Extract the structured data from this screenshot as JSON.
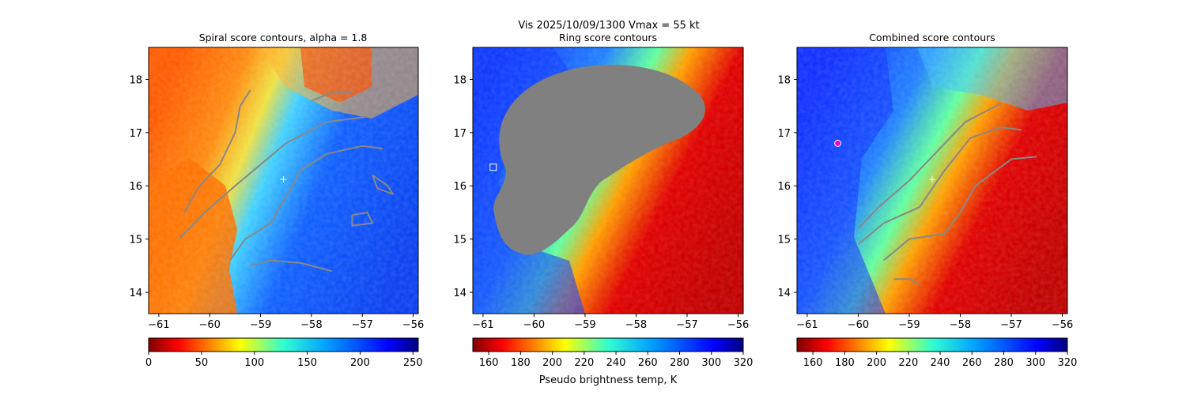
{
  "suptitle": "Vis  2025/10/09/1300    Vmax = 55 kt",
  "chart_data": [
    {
      "type": "heatmap",
      "title": "Spiral score contours, alpha =  1.8",
      "xlabel": "",
      "ylabel": "",
      "xlim": [
        -61.2,
        -55.9
      ],
      "ylim": [
        13.6,
        18.6
      ],
      "xticks": [
        -61,
        -60,
        -59,
        -58,
        -57,
        -56
      ],
      "yticks": [
        14,
        15,
        16,
        17,
        18
      ],
      "colormap": "jet_r",
      "colorbar": {
        "label": "",
        "range": [
          0,
          255
        ],
        "ticks": [
          0,
          50,
          100,
          150,
          200,
          250
        ]
      },
      "center_marker": {
        "lon": -58.55,
        "lat": 16.12,
        "color": "#ffffff"
      },
      "contour_color": "#888888",
      "contours": [
        [
          [
            -59.6,
            14.6
          ],
          [
            -59.3,
            15.0
          ],
          [
            -58.8,
            15.3
          ],
          [
            -58.5,
            15.8
          ],
          [
            -58.2,
            16.3
          ],
          [
            -57.7,
            16.6
          ],
          [
            -57.0,
            16.75
          ],
          [
            -56.6,
            16.7
          ]
        ],
        [
          [
            -60.6,
            15.0
          ],
          [
            -60.1,
            15.5
          ],
          [
            -59.5,
            16.0
          ],
          [
            -59.0,
            16.4
          ],
          [
            -58.5,
            16.8
          ],
          [
            -57.7,
            17.2
          ],
          [
            -56.9,
            17.3
          ]
        ],
        [
          [
            -60.5,
            15.5
          ],
          [
            -60.2,
            16.0
          ],
          [
            -59.8,
            16.4
          ],
          [
            -59.5,
            17.0
          ],
          [
            -59.4,
            17.5
          ],
          [
            -59.2,
            17.8
          ]
        ],
        [
          [
            -59.2,
            14.5
          ],
          [
            -58.8,
            14.6
          ],
          [
            -58.2,
            14.55
          ],
          [
            -57.6,
            14.4
          ]
        ],
        [
          [
            -58.0,
            17.6
          ],
          [
            -57.6,
            17.75
          ],
          [
            -57.2,
            17.75
          ]
        ],
        [
          [
            -56.8,
            16.2
          ],
          [
            -56.5,
            16.0
          ],
          [
            -56.4,
            15.85
          ],
          [
            -56.7,
            15.95
          ],
          [
            -56.8,
            16.2
          ]
        ],
        [
          [
            -57.2,
            15.45
          ],
          [
            -56.9,
            15.5
          ],
          [
            -56.8,
            15.3
          ],
          [
            -57.2,
            15.25
          ],
          [
            -57.2,
            15.45
          ]
        ]
      ]
    },
    {
      "type": "heatmap",
      "title": "Ring score contours",
      "xlabel": "Pseudo brightness temp, K",
      "ylabel": "",
      "xlim": [
        -61.2,
        -55.9
      ],
      "ylim": [
        13.6,
        18.6
      ],
      "xticks": [
        -61,
        -60,
        -59,
        -58,
        -57,
        -56
      ],
      "yticks": [
        14,
        15,
        16,
        17,
        18
      ],
      "colormap": "jet_r",
      "colorbar": {
        "label": "Pseudo brightness temp, K",
        "range": [
          150,
          320
        ],
        "ticks": [
          160,
          180,
          200,
          220,
          240,
          260,
          280,
          300,
          320
        ]
      },
      "masked_color": "#808080",
      "box_marker": {
        "lon": -60.8,
        "lat": 16.35,
        "color": "#ffffff"
      }
    },
    {
      "type": "heatmap",
      "title": "Combined score contours",
      "xlabel": "",
      "ylabel": "",
      "xlim": [
        -61.2,
        -55.9
      ],
      "ylim": [
        13.6,
        18.6
      ],
      "xticks": [
        -61,
        -60,
        -59,
        -58,
        -57,
        -56
      ],
      "yticks": [
        14,
        15,
        16,
        17,
        18
      ],
      "colormap": "jet_r",
      "colorbar": {
        "label": "",
        "range": [
          150,
          320
        ],
        "ticks": [
          160,
          180,
          200,
          220,
          240,
          260,
          280,
          300,
          320
        ]
      },
      "center_marker": {
        "lon": -58.55,
        "lat": 16.12,
        "color": "#ffffff"
      },
      "circle_marker": {
        "lon": -60.4,
        "lat": 16.8,
        "color": "#dd00dd"
      },
      "contour_color": "#888888",
      "contours": [
        [
          [
            -59.5,
            14.6
          ],
          [
            -59.0,
            15.0
          ],
          [
            -58.3,
            15.1
          ],
          [
            -58.0,
            15.5
          ],
          [
            -57.7,
            16.0
          ],
          [
            -57.0,
            16.5
          ],
          [
            -56.5,
            16.55
          ]
        ],
        [
          [
            -60.0,
            14.9
          ],
          [
            -59.5,
            15.3
          ],
          [
            -58.8,
            15.6
          ],
          [
            -58.3,
            16.3
          ],
          [
            -57.8,
            16.9
          ],
          [
            -57.2,
            17.1
          ],
          [
            -56.8,
            17.05
          ]
        ],
        [
          [
            -60.0,
            15.2
          ],
          [
            -59.6,
            15.6
          ],
          [
            -59.0,
            16.1
          ],
          [
            -58.5,
            16.6
          ],
          [
            -57.9,
            17.2
          ],
          [
            -57.2,
            17.55
          ]
        ],
        [
          [
            -59.3,
            14.25
          ],
          [
            -59.0,
            14.25
          ],
          [
            -58.8,
            14.15
          ]
        ]
      ]
    }
  ]
}
